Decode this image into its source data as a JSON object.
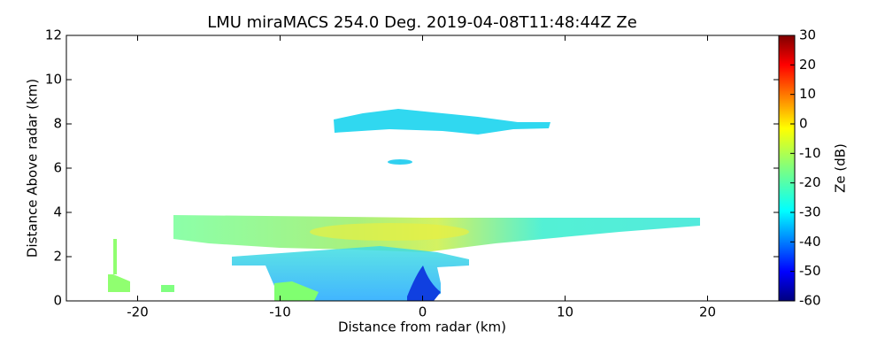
{
  "chart_data": {
    "type": "rhi",
    "title": "LMU miraMACS 254.0 Deg. 2019-04-08T11:48:44Z  Ze",
    "x_label": "Distance from radar (km)",
    "y_label": "Distance Above radar  (km)",
    "xlim": [
      -25,
      25
    ],
    "xticks": [
      -20,
      -10,
      0,
      10,
      20
    ],
    "ylim": [
      0,
      12
    ],
    "yticks": [
      0,
      2,
      4,
      6,
      8,
      10,
      12
    ],
    "colorbar_label": "Ze (dB)",
    "clim": [
      -60,
      30
    ],
    "cticks": [
      -60,
      -50,
      -40,
      -30,
      -20,
      -10,
      0,
      10,
      20,
      30
    ],
    "colormap": "jet"
  }
}
